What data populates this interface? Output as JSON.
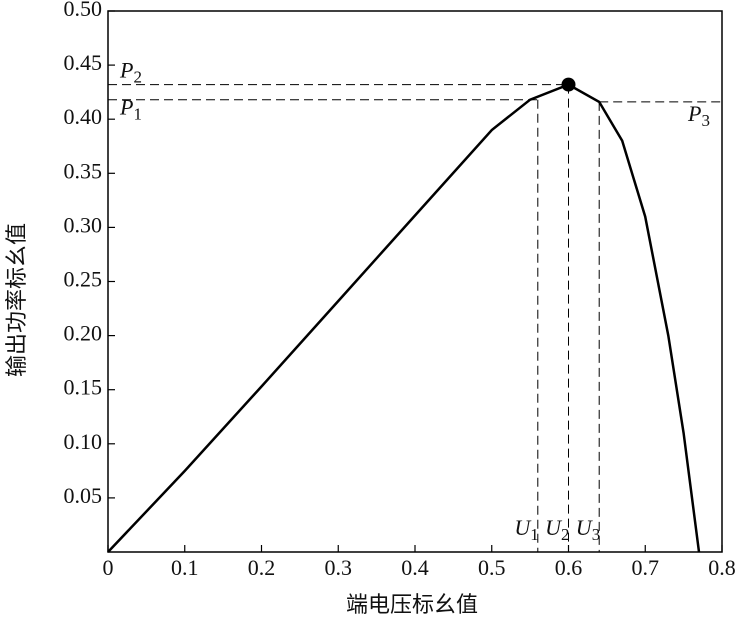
{
  "chart_data": {
    "type": "line",
    "x_label": "端电压标幺值",
    "y_label": "输出功率标幺值",
    "x": [
      0,
      0.1,
      0.2,
      0.3,
      0.4,
      0.5,
      0.55,
      0.6,
      0.64,
      0.67,
      0.7,
      0.73,
      0.75,
      0.77
    ],
    "values": [
      0,
      0.075,
      0.153,
      0.232,
      0.311,
      0.39,
      0.418,
      0.432,
      0.416,
      0.38,
      0.31,
      0.2,
      0.11,
      0
    ],
    "color": "#000000",
    "xlim": [
      0,
      0.8
    ],
    "ylim": [
      0,
      0.5
    ],
    "xticks": [
      0,
      0.1,
      0.2,
      0.3,
      0.4,
      0.5,
      0.6,
      0.7,
      0.8
    ],
    "yticks": [
      0.05,
      {
        "value": 0.1,
        "label": "0.10"
      },
      0.15,
      {
        "value": 0.2,
        "label": "0.20"
      },
      0.25,
      {
        "value": 0.3,
        "label": "0.30"
      },
      0.35,
      {
        "value": 0.4,
        "label": "0.40"
      },
      0.45,
      {
        "value": 0.5,
        "label": "0.50"
      }
    ],
    "operating_points": [
      {
        "x": 0.56,
        "y": 0.418,
        "x_label": "U1",
        "y_label": "P1",
        "side": "left",
        "marker": false
      },
      {
        "x": 0.6,
        "y": 0.432,
        "x_label": "U2",
        "y_label": "P2",
        "side": "left",
        "marker": true
      },
      {
        "x": 0.64,
        "y": 0.416,
        "x_label": "U3",
        "y_label": "P3",
        "side": "right",
        "marker": false
      }
    ]
  }
}
